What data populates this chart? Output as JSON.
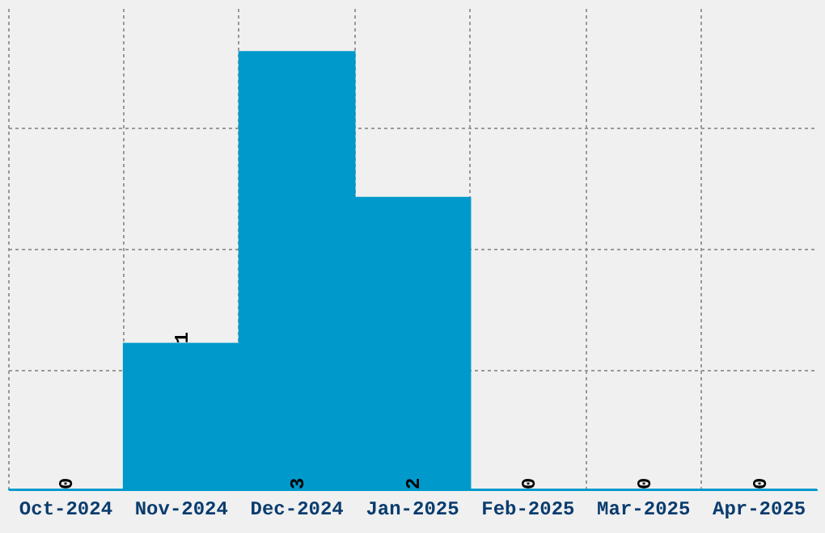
{
  "chart_data": {
    "type": "bar",
    "categories": [
      "Oct-2024",
      "Nov-2024",
      "Dec-2024",
      "Jan-2025",
      "Feb-2025",
      "Mar-2025",
      "Apr-2025"
    ],
    "values": [
      0,
      1,
      3,
      2,
      0,
      0,
      0
    ],
    "color": "#0099cc",
    "data_labels": true,
    "ylim": [
      0,
      3.3
    ],
    "yticks": [
      {
        "value": 0.825,
        "label": null
      },
      {
        "value": 1.65,
        "label": null
      },
      {
        "value": 2.475,
        "label": null
      }
    ],
    "tick_labels": "x",
    "grid": true
  }
}
